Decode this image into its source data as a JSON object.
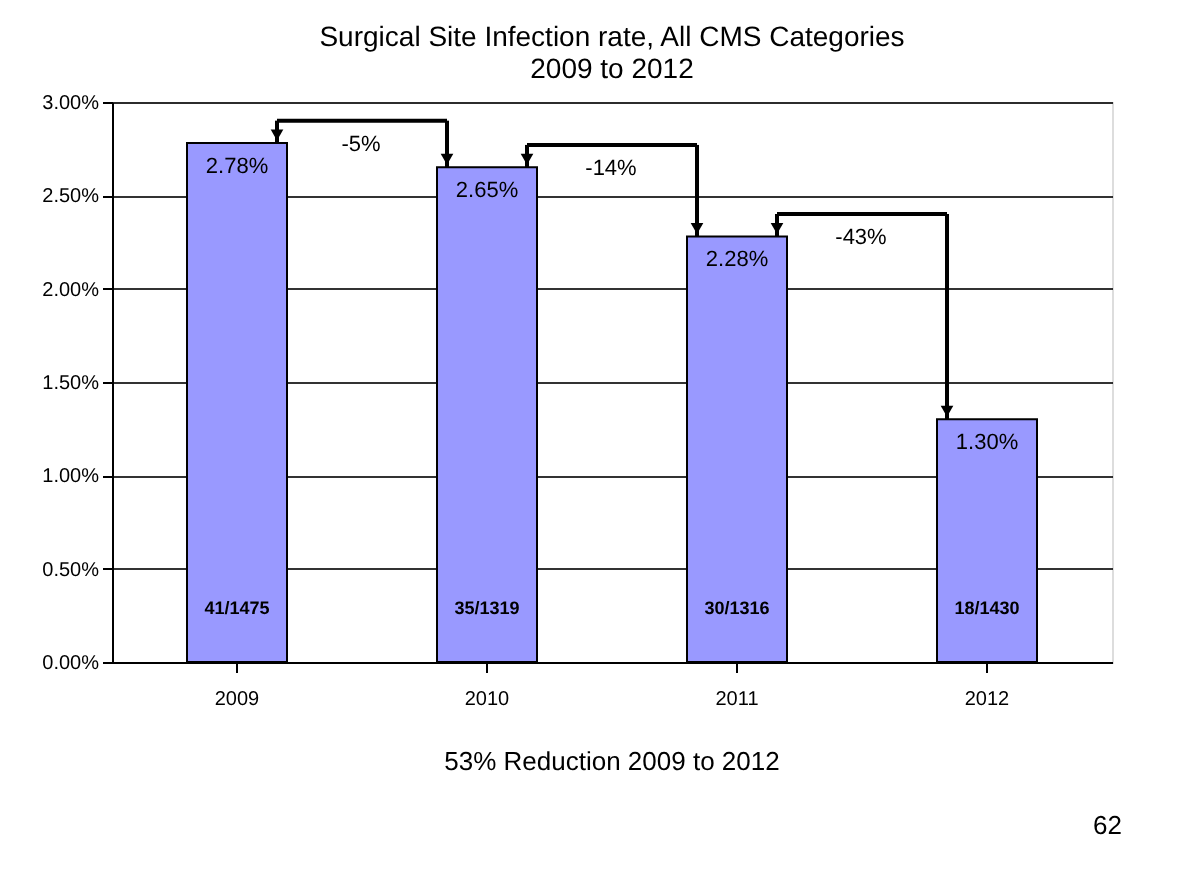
{
  "chart_data": {
    "type": "bar",
    "title": "Surgical Site Infection rate, All CMS Categories",
    "subtitle": "2009 to 2012",
    "categories": [
      "2009",
      "2010",
      "2011",
      "2012"
    ],
    "values": [
      2.78,
      2.65,
      2.28,
      1.3
    ],
    "color": "#9999ff",
    "value_labels": [
      "2.78%",
      "2.65%",
      "2.28%",
      "1.30%"
    ],
    "ylim": [
      0,
      3
    ],
    "yticks": [
      {
        "value": 0,
        "label": "0.00%"
      },
      {
        "value": 0.5,
        "label": "0.50%"
      },
      {
        "value": 1,
        "label": "1.00%"
      },
      {
        "value": 1.5,
        "label": "1.50%"
      },
      {
        "value": 2,
        "label": "2.00%"
      },
      {
        "value": 2.5,
        "label": "2.50%"
      },
      {
        "value": 3,
        "label": "3.00%"
      }
    ],
    "grid": "y",
    "annotations": [
      "-5%",
      "-14%",
      "-43%",
      "41/1475",
      "35/1319",
      "30/1316",
      "18/1430",
      "53% Reduction 2009 to 2012",
      "62"
    ]
  }
}
